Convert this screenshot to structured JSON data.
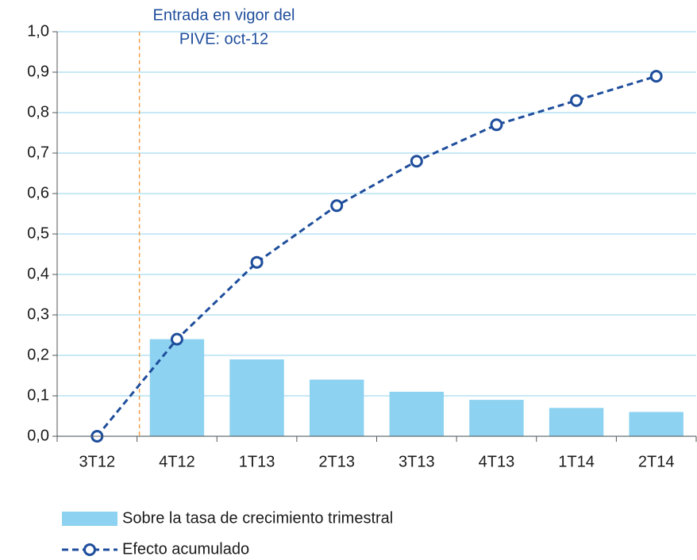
{
  "chart_data": {
    "type": "bar_line",
    "annotation": [
      "Entrada en vigor del",
      "PIVE: oct-12"
    ],
    "categories": [
      "3T12",
      "4T12",
      "1T13",
      "2T13",
      "3T13",
      "4T13",
      "1T14",
      "2T14"
    ],
    "series": [
      {
        "name": "Sobre la tasa de crecimiento trimestral",
        "type": "bar",
        "color": "#8dd2f0",
        "values": [
          null,
          0.24,
          0.19,
          0.14,
          0.11,
          0.09,
          0.07,
          0.06
        ]
      },
      {
        "name": "Efecto acumulado",
        "type": "line",
        "color": "#1f4e9c",
        "values": [
          0,
          0.24,
          0.43,
          0.57,
          0.68,
          0.77,
          0.83,
          0.89
        ]
      }
    ],
    "ylim": [
      0,
      1
    ],
    "yticks": [
      {
        "value": 0,
        "label": "0,0"
      },
      {
        "value": 0.1,
        "label": "0,1"
      },
      {
        "value": 0.2,
        "label": "0,2"
      },
      {
        "value": 0.3,
        "label": "0,3"
      },
      {
        "value": 0.4,
        "label": "0,4"
      },
      {
        "value": 0.5,
        "label": "0,5"
      },
      {
        "value": 0.6,
        "label": "0,6"
      },
      {
        "value": 0.7,
        "label": "0,7"
      },
      {
        "value": 0.8,
        "label": "0,8"
      },
      {
        "value": 0.9,
        "label": "0,9"
      },
      {
        "value": 1,
        "label": "1,0"
      }
    ],
    "grid": true
  }
}
